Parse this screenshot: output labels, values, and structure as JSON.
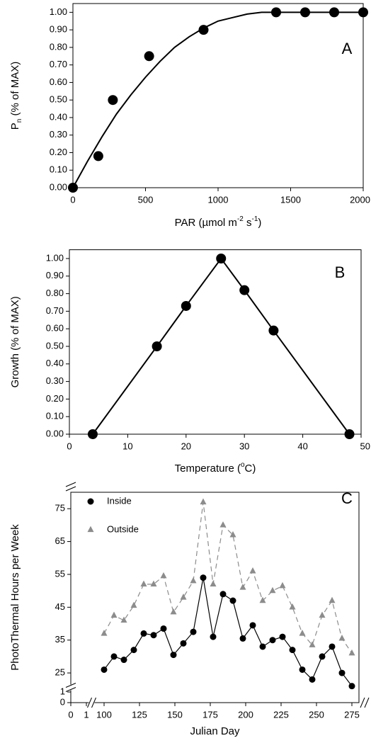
{
  "chart_data": [
    {
      "type": "scatter",
      "ylabel": [
        {
          "text": "P"
        },
        {
          "text": "n",
          "script": "sub"
        },
        {
          "text": " (% of MAX)"
        }
      ],
      "xlabel": [
        {
          "text": "PAR (µmol m"
        },
        {
          "text": "-2",
          "script": "sup"
        },
        {
          "text": " s"
        },
        {
          "text": "-1",
          "script": "sup"
        },
        {
          "text": ")"
        }
      ],
      "annotation": "A",
      "xlim": [
        0,
        2000
      ],
      "xticks": [
        0,
        500,
        1000,
        1500,
        2000
      ],
      "ylim": [
        0,
        1.05
      ],
      "yticks": [
        {
          "value": 0,
          "label": "0.00"
        },
        {
          "value": 0.1,
          "label": "0.10"
        },
        {
          "value": 0.2,
          "label": "0.20"
        },
        {
          "value": 0.3,
          "label": "0.30"
        },
        {
          "value": 0.4,
          "label": "0.40"
        },
        {
          "value": 0.5,
          "label": "0.50"
        },
        {
          "value": 0.6,
          "label": "0.60"
        },
        {
          "value": 0.7,
          "label": "0.70"
        },
        {
          "value": 0.8,
          "label": "0.80"
        },
        {
          "value": 0.9,
          "label": "0.90"
        },
        {
          "value": 1.0,
          "label": "1.00"
        }
      ],
      "series": [
        {
          "color": "#000000",
          "mode": "line",
          "x": [
            0,
            100,
            200,
            300,
            400,
            500,
            600,
            700,
            800,
            900,
            1000,
            1100,
            1200,
            1300,
            1400,
            1600,
            1800,
            2000
          ],
          "values": [
            0,
            0.15,
            0.29,
            0.42,
            0.53,
            0.63,
            0.72,
            0.8,
            0.86,
            0.91,
            0.95,
            0.97,
            0.99,
            1.0,
            1.0,
            1.0,
            1.0,
            1.0
          ]
        },
        {
          "color": "#000000",
          "mode": "markers",
          "marker": "circle",
          "x": [
            0,
            175,
            275,
            525,
            900,
            1400,
            1600,
            1800,
            2000
          ],
          "values": [
            0,
            0.18,
            0.5,
            0.75,
            0.9,
            1.0,
            1.0,
            1.0,
            1.0
          ]
        }
      ]
    },
    {
      "type": "line",
      "ylabel": [
        {
          "text": "Growth (% of MAX)"
        }
      ],
      "xlabel": [
        {
          "text": "Temperature  ("
        },
        {
          "text": "o",
          "script": "sup"
        },
        {
          "text": "C)"
        }
      ],
      "annotation": "B",
      "xlim": [
        0,
        50
      ],
      "xticks": [
        0,
        10,
        20,
        30,
        40,
        50
      ],
      "ylim": [
        0,
        1.05
      ],
      "yticks": [
        {
          "value": 0,
          "label": "0.00"
        },
        {
          "value": 0.1,
          "label": "0.10"
        },
        {
          "value": 0.2,
          "label": "0.20"
        },
        {
          "value": 0.3,
          "label": "0.30"
        },
        {
          "value": 0.4,
          "label": "0.40"
        },
        {
          "value": 0.5,
          "label": "0.50"
        },
        {
          "value": 0.6,
          "label": "0.60"
        },
        {
          "value": 0.7,
          "label": "0.70"
        },
        {
          "value": 0.8,
          "label": "0.80"
        },
        {
          "value": 0.9,
          "label": "0.90"
        },
        {
          "value": 1.0,
          "label": "1.00"
        }
      ],
      "series": [
        {
          "color": "#000000",
          "mode": "line+markers",
          "marker": "circle",
          "x": [
            4,
            15,
            20,
            26,
            30,
            35,
            48
          ],
          "values": [
            0,
            0.5,
            0.73,
            1.0,
            0.82,
            0.59,
            0
          ]
        }
      ]
    },
    {
      "type": "line",
      "ylabel": [
        {
          "text": "PhotoThermal Hours per Week"
        }
      ],
      "xlabel": [
        {
          "text": "Julian Day"
        }
      ],
      "annotation": "C",
      "legend": "upper left",
      "xlim": [
        0,
        280
      ],
      "xbreak": [
        1,
        95
      ],
      "xticks": [
        0,
        1,
        100,
        125,
        150,
        175,
        200,
        225,
        250,
        275
      ],
      "ylim": [
        0,
        80
      ],
      "ybreak": [
        1,
        22
      ],
      "yticks": [
        0,
        1,
        25,
        35,
        45,
        55,
        65,
        75
      ],
      "x": [
        100,
        107,
        114,
        121,
        128,
        135,
        142,
        149,
        156,
        163,
        170,
        177,
        184,
        191,
        198,
        205,
        212,
        219,
        226,
        233,
        240,
        247,
        254,
        261,
        268,
        275
      ],
      "series": [
        {
          "name": "Inside",
          "color": "#000000",
          "mode": "line+markers",
          "marker": "circle",
          "dash": false,
          "values": [
            26,
            30,
            29,
            32,
            37,
            36.5,
            38.5,
            30.5,
            34,
            37.5,
            54,
            36,
            49,
            47,
            35.5,
            39.5,
            33,
            35,
            36,
            32,
            26,
            23,
            30,
            33,
            25,
            21
          ]
        },
        {
          "name": "Outside",
          "color": "#8c8c8c",
          "mode": "line+markers",
          "marker": "triangle",
          "dash": true,
          "values": [
            37,
            42.5,
            41,
            45.5,
            52,
            52,
            54.5,
            43.5,
            48,
            53,
            77,
            52,
            70,
            67,
            51,
            56,
            47,
            50,
            51.5,
            45,
            37,
            33.5,
            42.5,
            47,
            35.5,
            31
          ]
        }
      ]
    }
  ]
}
